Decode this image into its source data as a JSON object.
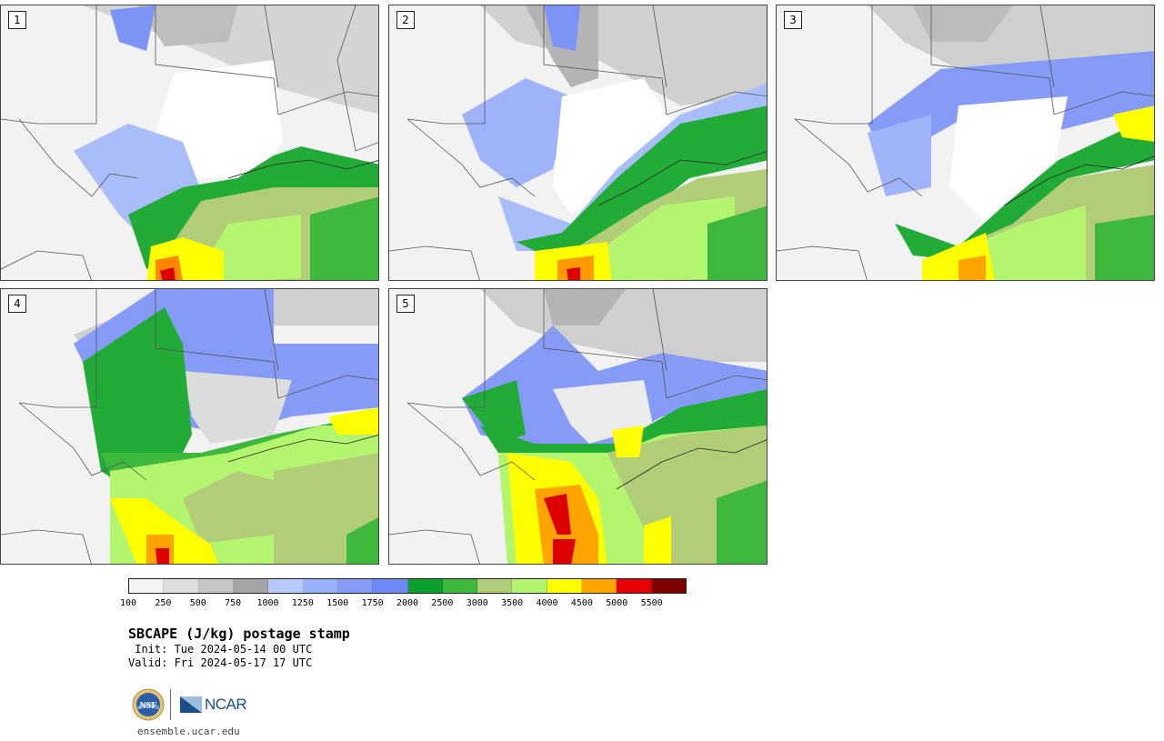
{
  "panels": [
    {
      "label": "1"
    },
    {
      "label": "2"
    },
    {
      "label": "3"
    },
    {
      "label": "4"
    },
    {
      "label": "5"
    }
  ],
  "colorbar": {
    "colors": [
      "#f4f4f4",
      "#dddddd",
      "#c6c6c6",
      "#a5a5a5",
      "#b9c8fb",
      "#97b2fb",
      "#869bf6",
      "#6e88f4",
      "#0c9f2c",
      "#3db83d",
      "#b1cd78",
      "#b3f56f",
      "#ffff00",
      "#ffa400",
      "#e40000",
      "#7d0000"
    ],
    "ticks": [
      "100",
      "250",
      "500",
      "750",
      "1000",
      "1250",
      "1500",
      "1750",
      "2000",
      "2500",
      "3000",
      "3500",
      "4000",
      "4500",
      "5000",
      "5500"
    ]
  },
  "title": "SBCAPE (J/kg) postage stamp",
  "init": " Init: Tue 2024-05-14 00 UTC",
  "valid": "Valid: Fri 2024-05-17 17 UTC",
  "logos": {
    "nsf": "NSF",
    "ncar": "NCAR"
  },
  "site": "ensemble.ucar.edu"
}
